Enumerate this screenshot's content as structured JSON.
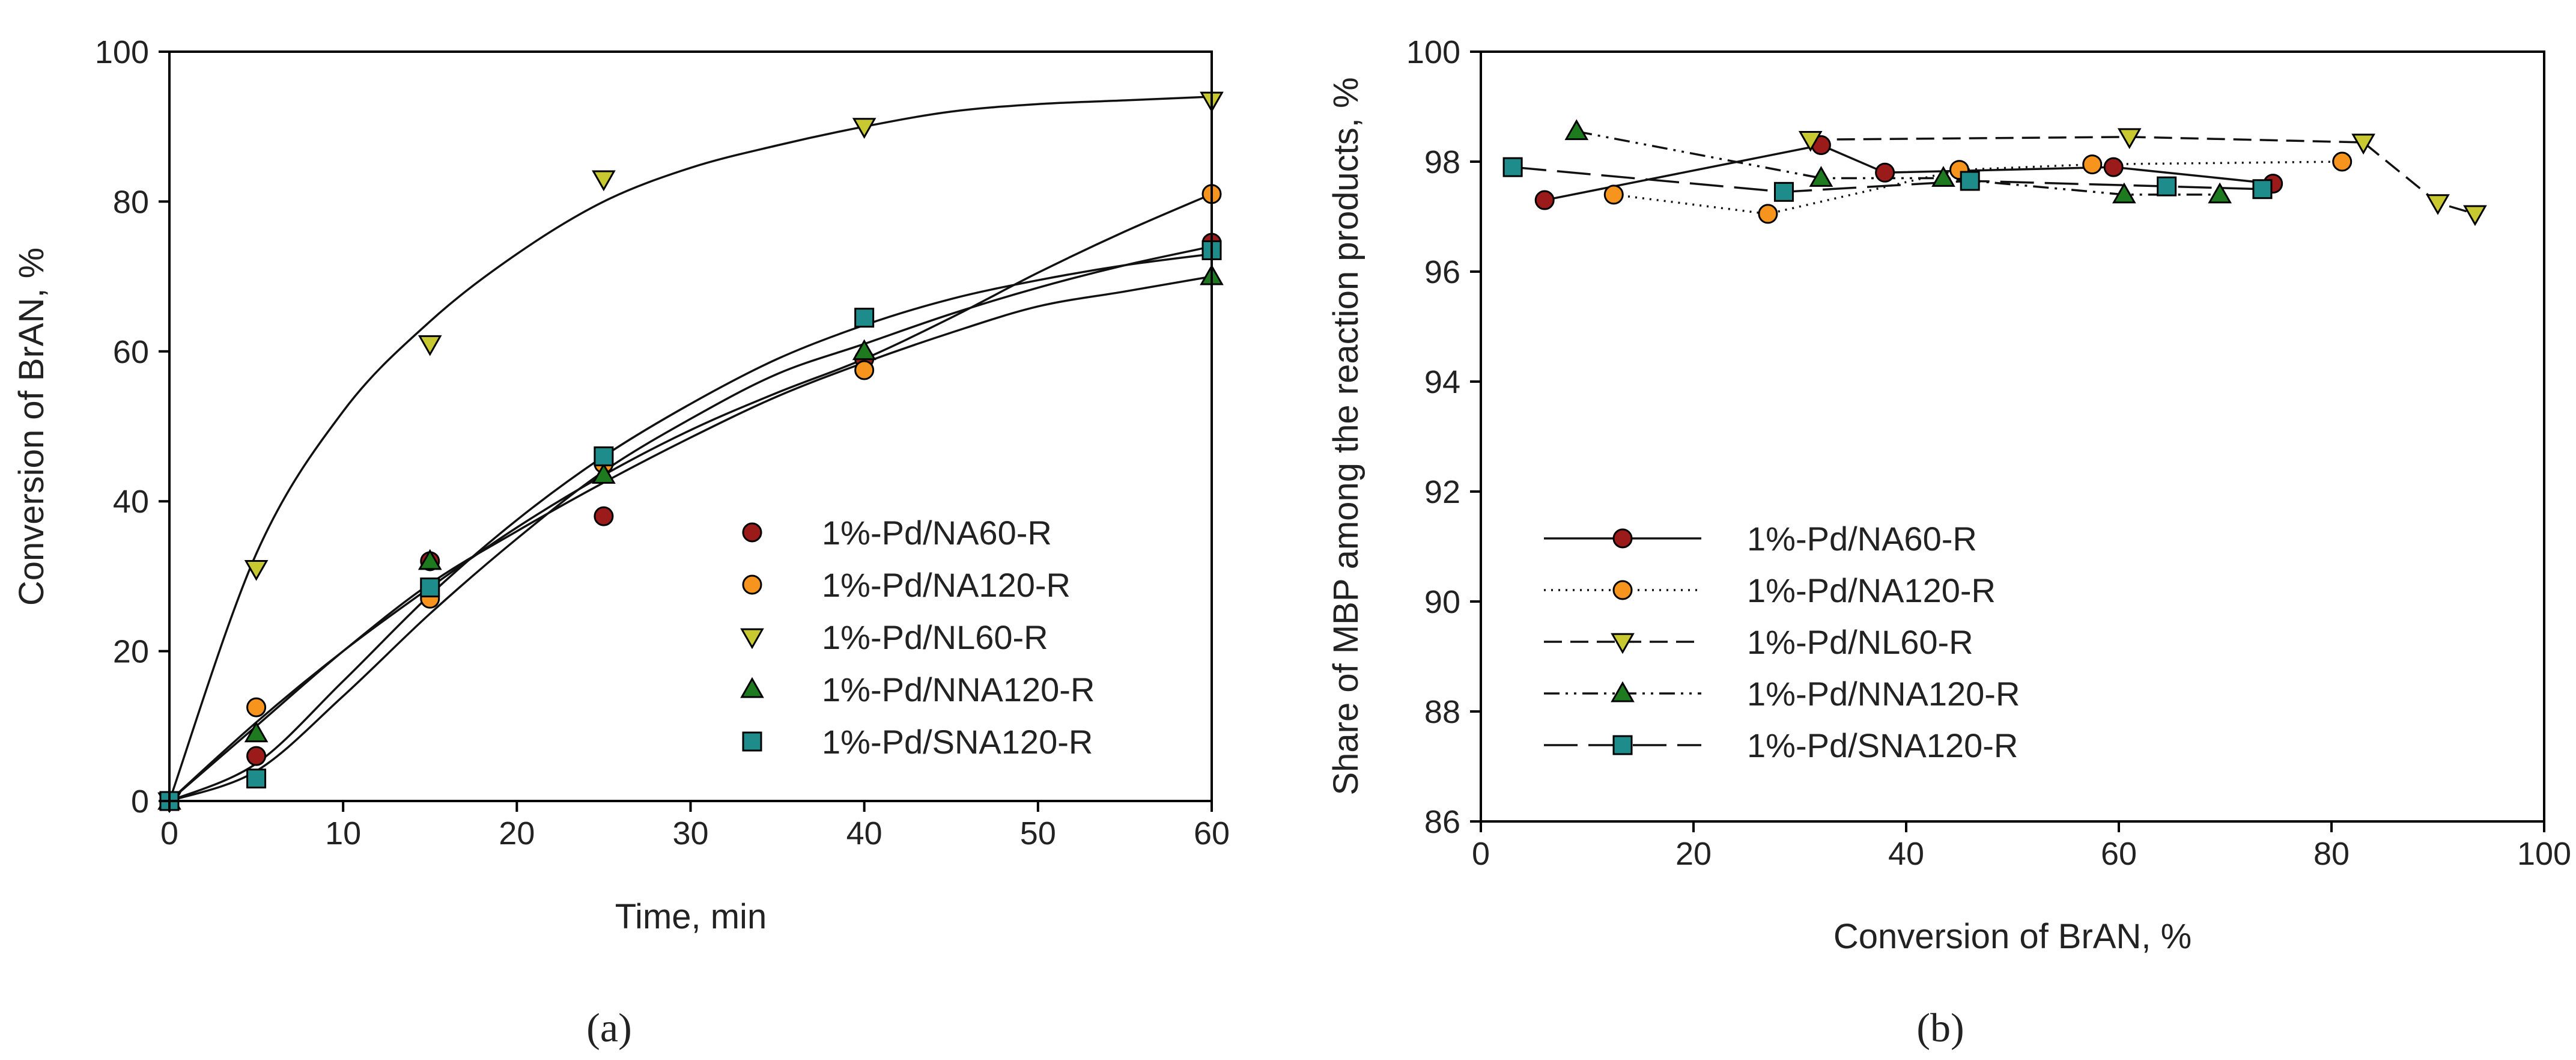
{
  "chart_data": [
    {
      "type": "scatter",
      "panel_label": "(a)",
      "xlabel": "Time, min",
      "ylabel": "Conversion of BrAN, %",
      "xlim": [
        0,
        60
      ],
      "ylim": [
        0,
        100
      ],
      "xticks": [
        0,
        10,
        20,
        30,
        40,
        50,
        60
      ],
      "yticks": [
        0,
        20,
        40,
        60,
        80,
        100
      ],
      "legend_position": "center-right",
      "fit_lines": "smooth curves through each series",
      "series": [
        {
          "name": "1%-Pd/NA60-R",
          "marker": "circle",
          "color": "#9b1b1b",
          "x": [
            0,
            5,
            15,
            25,
            40,
            60
          ],
          "y": [
            0,
            6,
            32,
            38,
            59,
            74.5
          ],
          "fit_x": [
            0,
            5,
            10,
            15,
            20,
            25,
            30,
            35,
            40,
            45,
            50,
            55,
            60
          ],
          "fit_y": [
            0,
            4,
            14,
            25,
            35,
            44,
            51,
            57,
            61,
            65,
            68.5,
            71.5,
            74
          ]
        },
        {
          "name": "1%-Pd/NA120-R",
          "marker": "circle",
          "color": "#f7941d",
          "x": [
            0,
            5,
            15,
            25,
            40,
            60
          ],
          "y": [
            0,
            12.5,
            27,
            45,
            57.5,
            81
          ],
          "fit_x": [
            0,
            5,
            10,
            15,
            20,
            25,
            30,
            35,
            40,
            45,
            50,
            55,
            60
          ],
          "fit_y": [
            0,
            10.5,
            20,
            28.5,
            36.5,
            43.5,
            49.5,
            54.5,
            59,
            64.5,
            70.5,
            76,
            81
          ]
        },
        {
          "name": "1%-Pd/NL60-R",
          "marker": "triangle-down",
          "color": "#c8c830",
          "x": [
            0,
            5,
            15,
            25,
            40,
            60
          ],
          "y": [
            0,
            31,
            61,
            83,
            90,
            93.5
          ],
          "fit_x": [
            0,
            5,
            10,
            15,
            20,
            25,
            30,
            35,
            40,
            45,
            50,
            55,
            60
          ],
          "fit_y": [
            0,
            33,
            52,
            64,
            73,
            80,
            84.5,
            87.5,
            90,
            92,
            93,
            93.5,
            94
          ]
        },
        {
          "name": "1%-Pd/NNA120-R",
          "marker": "triangle-up",
          "color": "#1e7a1e",
          "x": [
            0,
            5,
            15,
            25,
            40,
            60
          ],
          "y": [
            0,
            9,
            32,
            43.5,
            60,
            70
          ],
          "fit_x": [
            0,
            5,
            10,
            15,
            20,
            25,
            30,
            35,
            40,
            45,
            50,
            55,
            60
          ],
          "fit_y": [
            0,
            10,
            20,
            29,
            36,
            42.5,
            48.5,
            54,
            58.5,
            62.5,
            66,
            68,
            70
          ]
        },
        {
          "name": "1%-Pd/SNA120-R",
          "marker": "square",
          "color": "#1f8c8c",
          "x": [
            0,
            5,
            15,
            25,
            40,
            60
          ],
          "y": [
            0,
            3,
            28.5,
            46,
            64.5,
            73.5
          ],
          "fit_x": [
            0,
            5,
            10,
            15,
            20,
            25,
            30,
            35,
            40,
            45,
            50,
            55,
            60
          ],
          "fit_y": [
            0,
            5,
            16,
            27.5,
            37.5,
            46,
            53,
            59,
            63.5,
            67,
            69.5,
            71.5,
            73
          ]
        }
      ]
    },
    {
      "type": "line",
      "panel_label": "(b)",
      "xlabel": "Conversion of BrAN, %",
      "ylabel": "Share of MBP among the reaction products, %",
      "xlim": [
        0,
        100
      ],
      "ylim": [
        86,
        100
      ],
      "xticks": [
        0,
        20,
        40,
        60,
        80,
        100
      ],
      "yticks": [
        86,
        88,
        90,
        92,
        94,
        96,
        98,
        100
      ],
      "legend_position": "lower-left",
      "series": [
        {
          "name": "1%-Pd/NA60-R",
          "marker": "circle",
          "color": "#9b1b1b",
          "line_style": "solid",
          "x": [
            6,
            32,
            38,
            59.5,
            74.5
          ],
          "y": [
            97.3,
            98.3,
            97.8,
            97.9,
            97.6
          ]
        },
        {
          "name": "1%-Pd/NA120-R",
          "marker": "circle",
          "color": "#f7941d",
          "line_style": "dotted",
          "x": [
            12.5,
            27,
            45,
            57.5,
            81
          ],
          "y": [
            97.4,
            97.05,
            97.85,
            97.95,
            98.0
          ]
        },
        {
          "name": "1%-Pd/NL60-R",
          "marker": "triangle-down",
          "color": "#c8c830",
          "line_style": "dashed",
          "x": [
            31,
            61,
            83,
            90,
            93.5
          ],
          "y": [
            98.4,
            98.45,
            98.35,
            97.25,
            97.05
          ]
        },
        {
          "name": "1%-Pd/NNA120-R",
          "marker": "triangle-up",
          "color": "#1e7a1e",
          "line_style": "dash-dot-dot",
          "x": [
            9,
            32,
            43.5,
            60.5,
            69.5
          ],
          "y": [
            98.55,
            97.7,
            97.7,
            97.4,
            97.4
          ]
        },
        {
          "name": "1%-Pd/SNA120-R",
          "marker": "square",
          "color": "#1f8c8c",
          "line_style": "long-dash",
          "x": [
            3,
            28.5,
            46,
            64.5,
            73.5
          ],
          "y": [
            97.9,
            97.45,
            97.65,
            97.55,
            97.5
          ]
        }
      ]
    }
  ]
}
